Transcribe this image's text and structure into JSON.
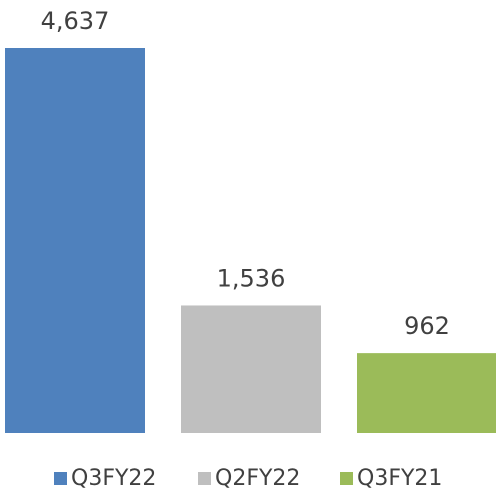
{
  "chart_data": {
    "type": "bar",
    "series": [
      {
        "name": "Q3FY22",
        "color": "#4f81bd",
        "values": [
          4637
        ],
        "value_labels": [
          "4,637"
        ]
      },
      {
        "name": "Q2FY22",
        "color": "#bfbfbf",
        "values": [
          1536
        ],
        "value_labels": [
          "1,536"
        ]
      },
      {
        "name": "Q3FY21",
        "color": "#9bbb59",
        "values": [
          962
        ],
        "value_labels": [
          "962"
        ]
      }
    ],
    "legend": "bottom"
  }
}
